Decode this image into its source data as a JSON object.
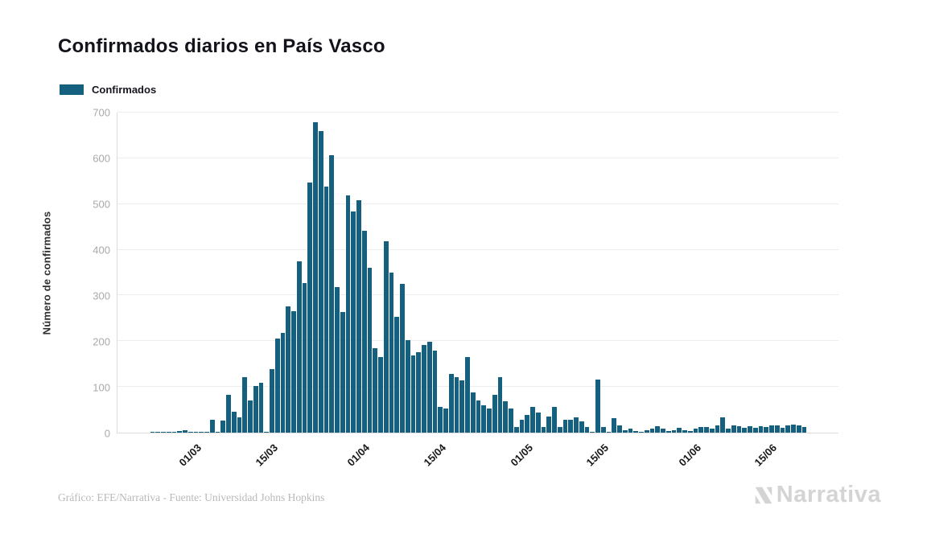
{
  "title": "Confirmados diarios en País Vasco",
  "legend": {
    "label": "Confirmados",
    "swatch_color": "#15607f"
  },
  "footer": {
    "credit": "Gráfico: EFE/Narrativa - Fuente: Universidad Johns Hopkins"
  },
  "logo": {
    "text": "Narrativa",
    "color": "#d4d4d4"
  },
  "colors": {
    "bar": "#15607f",
    "grid": "#ededed",
    "axis": "#dcdcdc",
    "y_tick_text": "#a9a9a9",
    "x_tick_text": "#191919",
    "title_text": "#13131c",
    "footer_text": "#b9b9b9"
  },
  "chart_data": {
    "type": "bar",
    "title": "Confirmados diarios en País Vasco",
    "series_name": "Confirmados",
    "xlabel": "",
    "ylabel": "Número de confirmados",
    "ylim": [
      0,
      700
    ],
    "grid": true,
    "legend_position": "top-left",
    "y_ticks": [
      0,
      100,
      200,
      300,
      400,
      500,
      600,
      700
    ],
    "x_ticks": [
      {
        "label": "01/03",
        "index": 14
      },
      {
        "label": "15/03",
        "index": 28
      },
      {
        "label": "01/04",
        "index": 45
      },
      {
        "label": "15/04",
        "index": 59
      },
      {
        "label": "01/05",
        "index": 75
      },
      {
        "label": "15/05",
        "index": 89
      },
      {
        "label": "01/06",
        "index": 106
      },
      {
        "label": "15/06",
        "index": 120
      }
    ],
    "dates": [
      "16/02",
      "17/02",
      "18/02",
      "19/02",
      "20/02",
      "21/02",
      "22/02",
      "23/02",
      "24/02",
      "25/02",
      "26/02",
      "27/02",
      "28/02",
      "29/02",
      "01/03",
      "02/03",
      "03/03",
      "04/03",
      "05/03",
      "06/03",
      "07/03",
      "08/03",
      "09/03",
      "10/03",
      "11/03",
      "12/03",
      "13/03",
      "14/03",
      "15/03",
      "16/03",
      "17/03",
      "18/03",
      "19/03",
      "20/03",
      "21/03",
      "22/03",
      "23/03",
      "24/03",
      "25/03",
      "26/03",
      "27/03",
      "28/03",
      "29/03",
      "30/03",
      "31/03",
      "01/04",
      "02/04",
      "03/04",
      "04/04",
      "05/04",
      "06/04",
      "07/04",
      "08/04",
      "09/04",
      "10/04",
      "11/04",
      "12/04",
      "13/04",
      "14/04",
      "15/04",
      "16/04",
      "17/04",
      "18/04",
      "19/04",
      "20/04",
      "21/04",
      "22/04",
      "23/04",
      "24/04",
      "25/04",
      "26/04",
      "27/04",
      "28/04",
      "29/04",
      "30/04",
      "01/05",
      "02/05",
      "03/05",
      "04/05",
      "05/05",
      "06/05",
      "07/05",
      "08/05",
      "09/05",
      "10/05",
      "11/05",
      "12/05",
      "13/05",
      "14/05",
      "15/05",
      "16/05",
      "17/05",
      "18/05",
      "19/05",
      "20/05",
      "21/05",
      "22/05",
      "23/05",
      "24/05",
      "25/05",
      "26/05",
      "27/05",
      "28/05",
      "29/05",
      "30/05",
      "31/05",
      "01/06",
      "02/06",
      "03/06",
      "04/06",
      "05/06",
      "06/06",
      "07/06",
      "08/06",
      "09/06",
      "10/06",
      "11/06",
      "12/06",
      "13/06",
      "14/06",
      "15/06",
      "16/06",
      "17/06",
      "18/06",
      "19/06",
      "20/06",
      "21/06",
      "22/06",
      "23/06",
      "24/06",
      "25/06",
      "26/06",
      "27/06"
    ],
    "values": [
      0,
      0,
      0,
      0,
      0,
      0,
      1,
      1,
      1,
      1,
      2,
      4,
      5,
      2,
      1,
      1,
      2,
      28,
      2,
      26,
      83,
      46,
      34,
      121,
      71,
      102,
      109,
      1,
      139,
      206,
      218,
      276,
      265,
      375,
      327,
      547,
      679,
      659,
      539,
      607,
      318,
      263,
      518,
      484,
      509,
      442,
      361,
      185,
      166,
      419,
      350,
      253,
      325,
      203,
      168,
      176,
      191,
      198,
      179,
      57,
      53,
      129,
      122,
      115,
      165,
      88,
      71,
      59,
      53,
      82,
      122,
      68,
      53,
      12,
      29,
      38,
      56,
      44,
      12,
      35,
      56,
      13,
      29,
      29,
      33,
      25,
      13,
      2,
      116,
      13,
      2,
      31,
      15,
      6,
      9,
      4,
      1,
      5,
      8,
      14,
      8,
      4,
      6,
      11,
      6,
      4,
      9,
      12,
      12,
      8,
      15,
      34,
      8,
      15,
      14,
      11,
      14,
      11,
      14,
      12,
      15,
      15,
      11,
      15,
      18,
      15,
      13,
      0,
      0,
      0,
      0,
      0,
      0
    ]
  }
}
